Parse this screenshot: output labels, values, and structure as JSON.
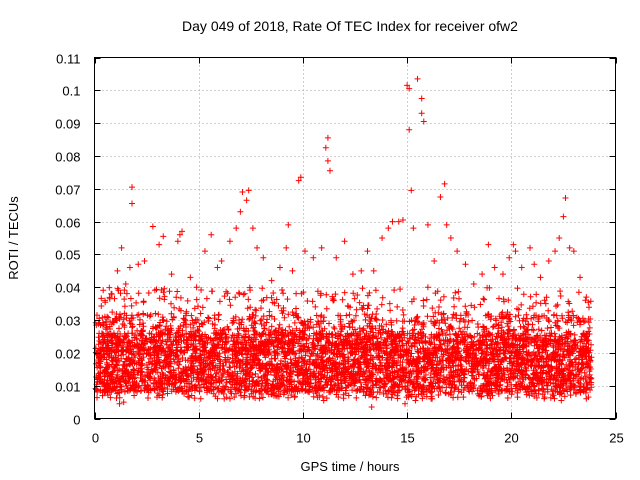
{
  "chart_data": {
    "type": "scatter",
    "title": "Day 049 of 2018, Rate Of TEC Index for receiver ofw2",
    "xlabel": "GPS time / hours",
    "ylabel": "ROTI / TECUs",
    "xlim": [
      0,
      25
    ],
    "ylim": [
      0,
      0.11
    ],
    "x_ticks": [
      0,
      5,
      10,
      15,
      20,
      25
    ],
    "x_tick_labels": [
      "0",
      "5",
      "10",
      "15",
      "20",
      "25"
    ],
    "y_ticks": [
      0,
      0.01,
      0.02,
      0.03,
      0.04,
      0.05,
      0.06,
      0.07,
      0.08,
      0.09,
      0.1,
      0.11
    ],
    "y_tick_labels": [
      "0",
      "0.01",
      "0.02",
      "0.03",
      "0.04",
      "0.05",
      "0.06",
      "0.07",
      "0.08",
      "0.09",
      "0.1",
      "0.11"
    ],
    "grid": true,
    "marker": "+",
    "series_color": "#ff0000",
    "series": [
      {
        "name": "ROTI",
        "points": [
          [
            0.2,
            0.019
          ],
          [
            0.5,
            0.031
          ],
          [
            0.8,
            0.038
          ],
          [
            1.1,
            0.045
          ],
          [
            1.3,
            0.052
          ],
          [
            1.5,
            0.041
          ],
          [
            1.7,
            0.046
          ],
          [
            1.8,
            0.0705
          ],
          [
            1.8,
            0.0655
          ],
          [
            2.1,
            0.047
          ],
          [
            2.4,
            0.048
          ],
          [
            2.8,
            0.0585
          ],
          [
            3.1,
            0.053
          ],
          [
            3.3,
            0.0555
          ],
          [
            3.7,
            0.044
          ],
          [
            4.0,
            0.054
          ],
          [
            4.1,
            0.056
          ],
          [
            4.2,
            0.057
          ],
          [
            4.6,
            0.043
          ],
          [
            4.9,
            0.04
          ],
          [
            5.3,
            0.051
          ],
          [
            5.6,
            0.056
          ],
          [
            5.9,
            0.046
          ],
          [
            6.1,
            0.048
          ],
          [
            6.5,
            0.054
          ],
          [
            6.8,
            0.058
          ],
          [
            7.0,
            0.063
          ],
          [
            7.1,
            0.069
          ],
          [
            7.3,
            0.0665
          ],
          [
            7.4,
            0.0695
          ],
          [
            7.6,
            0.058
          ],
          [
            7.8,
            0.052
          ],
          [
            8.1,
            0.049
          ],
          [
            8.5,
            0.042
          ],
          [
            8.9,
            0.046
          ],
          [
            9.2,
            0.052
          ],
          [
            9.3,
            0.059
          ],
          [
            9.5,
            0.045
          ],
          [
            9.8,
            0.0725
          ],
          [
            9.9,
            0.0735
          ],
          [
            10.1,
            0.051
          ],
          [
            10.5,
            0.049
          ],
          [
            10.9,
            0.052
          ],
          [
            11.1,
            0.0825
          ],
          [
            11.2,
            0.0855
          ],
          [
            11.2,
            0.0785
          ],
          [
            11.3,
            0.0755
          ],
          [
            11.6,
            0.049
          ],
          [
            12.0,
            0.054
          ],
          [
            12.4,
            0.044
          ],
          [
            12.8,
            0.045
          ],
          [
            13.1,
            0.051
          ],
          [
            13.4,
            0.045
          ],
          [
            13.8,
            0.055
          ],
          [
            14.1,
            0.058
          ],
          [
            14.3,
            0.06
          ],
          [
            14.6,
            0.06
          ],
          [
            14.8,
            0.0605
          ],
          [
            15.0,
            0.1015
          ],
          [
            15.1,
            0.1005
          ],
          [
            15.1,
            0.088
          ],
          [
            15.2,
            0.0695
          ],
          [
            15.3,
            0.058
          ],
          [
            15.5,
            0.1035
          ],
          [
            15.7,
            0.0975
          ],
          [
            15.7,
            0.093
          ],
          [
            15.8,
            0.0905
          ],
          [
            16.0,
            0.059
          ],
          [
            16.3,
            0.048
          ],
          [
            16.6,
            0.0675
          ],
          [
            16.8,
            0.0715
          ],
          [
            16.9,
            0.059
          ],
          [
            17.1,
            0.055
          ],
          [
            17.4,
            0.051
          ],
          [
            17.8,
            0.047
          ],
          [
            18.2,
            0.041
          ],
          [
            18.6,
            0.044
          ],
          [
            18.9,
            0.053
          ],
          [
            19.2,
            0.046
          ],
          [
            19.6,
            0.044
          ],
          [
            19.9,
            0.049
          ],
          [
            20.1,
            0.053
          ],
          [
            20.2,
            0.051
          ],
          [
            20.5,
            0.046
          ],
          [
            20.9,
            0.052
          ],
          [
            21.1,
            0.047
          ],
          [
            21.4,
            0.043
          ],
          [
            21.8,
            0.048
          ],
          [
            22.1,
            0.051
          ],
          [
            22.3,
            0.055
          ],
          [
            22.5,
            0.0615
          ],
          [
            22.6,
            0.0672
          ],
          [
            22.8,
            0.052
          ],
          [
            23.0,
            0.051
          ],
          [
            23.3,
            0.043
          ],
          [
            23.6,
            0.037
          ],
          [
            0.3,
            0.012
          ],
          [
            0.9,
            0.009
          ],
          [
            1.2,
            0.0045
          ],
          [
            1.4,
            0.005
          ],
          [
            1.9,
            0.007
          ],
          [
            2.6,
            0.008
          ],
          [
            3.0,
            0.0065
          ],
          [
            3.5,
            0.009
          ],
          [
            4.3,
            0.0075
          ],
          [
            5.1,
            0.006
          ],
          [
            5.4,
            0.008
          ],
          [
            6.2,
            0.0075
          ],
          [
            7.2,
            0.007
          ],
          [
            8.0,
            0.0075
          ],
          [
            8.7,
            0.007
          ],
          [
            9.6,
            0.0065
          ],
          [
            10.3,
            0.008
          ],
          [
            11.0,
            0.0055
          ],
          [
            11.7,
            0.0065
          ],
          [
            12.2,
            0.007
          ],
          [
            13.0,
            0.007
          ],
          [
            13.3,
            0.0035
          ],
          [
            14.0,
            0.0075
          ],
          [
            14.9,
            0.0045
          ],
          [
            15.4,
            0.0055
          ],
          [
            16.2,
            0.006
          ],
          [
            17.0,
            0.0075
          ],
          [
            17.7,
            0.0065
          ],
          [
            18.4,
            0.0075
          ],
          [
            19.4,
            0.0075
          ],
          [
            20.3,
            0.0065
          ],
          [
            21.0,
            0.0075
          ],
          [
            21.6,
            0.0065
          ],
          [
            22.4,
            0.0055
          ],
          [
            23.1,
            0.0075
          ],
          [
            23.7,
            0.0065
          ]
        ]
      }
    ]
  }
}
